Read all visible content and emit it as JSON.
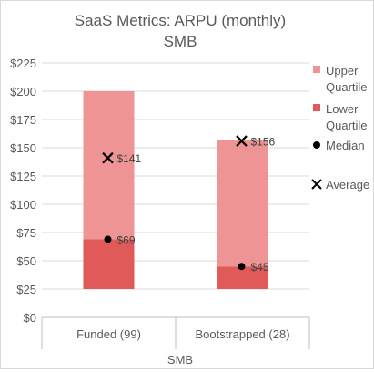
{
  "chart_data": {
    "type": "bar",
    "title": "SaaS Metrics: ARPU (monthly)",
    "subtitle": "SMB",
    "xlabel": "SMB",
    "ylabel": "",
    "ylim": [
      0,
      225
    ],
    "yticks": [
      0,
      25,
      50,
      75,
      100,
      125,
      150,
      175,
      200,
      225
    ],
    "ytick_labels": [
      "$0",
      "$25",
      "$50",
      "$75",
      "$100",
      "$125",
      "$150",
      "$175",
      "$200",
      "$225"
    ],
    "categories": [
      "Funded (99)",
      "Bootstrapped (28)"
    ],
    "series": [
      {
        "name": "Lower Quartile",
        "ranges": [
          [
            25,
            69
          ],
          [
            25,
            45
          ]
        ],
        "color": "#e05a5a"
      },
      {
        "name": "Upper Quartile",
        "ranges": [
          [
            69,
            200
          ],
          [
            45,
            157
          ]
        ],
        "color": "#ee9494"
      },
      {
        "name": "Median",
        "values": [
          69,
          45
        ],
        "labels": [
          "$69",
          "$45"
        ],
        "marker": "dot",
        "color": "#000000"
      },
      {
        "name": "Average",
        "values": [
          141,
          156
        ],
        "labels": [
          "$141",
          "$156"
        ],
        "marker": "x",
        "color": "#000000"
      }
    ],
    "legend": [
      "Upper\nQuartile",
      "Lower\nQuartile",
      "Median",
      "Average"
    ],
    "legend_position": "right",
    "grid": true
  }
}
